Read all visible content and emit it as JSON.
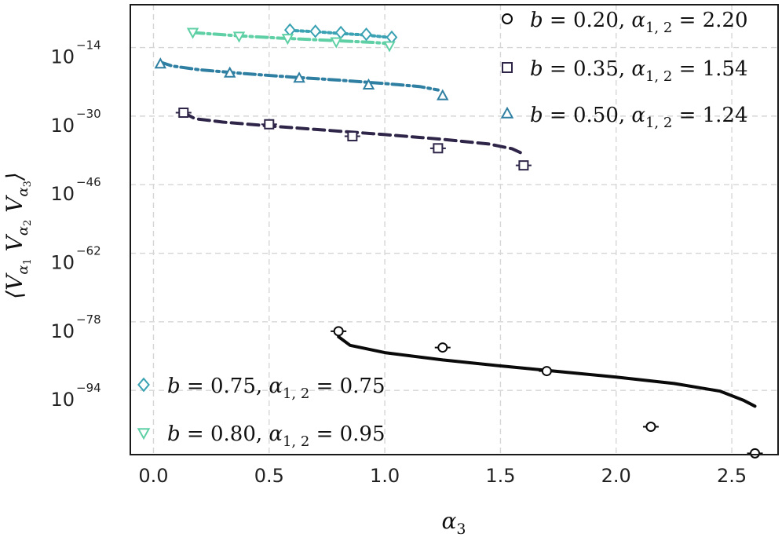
{
  "chart_data": {
    "type": "scatter",
    "title": "",
    "xlabel": "α3",
    "ylabel": "⟨Vα1 Vα2 Vα3⟩",
    "xlim": [
      -0.1,
      2.7
    ],
    "ylim_log10": [
      -109,
      -4
    ],
    "grid": true,
    "x_ticks": [
      "0.0",
      "0.5",
      "1.0",
      "1.5",
      "2.0",
      "2.5"
    ],
    "x_tick_values": [
      0,
      0.5,
      1.0,
      1.5,
      2.0,
      2.5
    ],
    "y_ticks": [
      {
        "base": "10",
        "exp": "−14",
        "value": -14
      },
      {
        "base": "10",
        "exp": "−30",
        "value": -30
      },
      {
        "base": "10",
        "exp": "−46",
        "value": -46
      },
      {
        "base": "10",
        "exp": "−62",
        "value": -62
      },
      {
        "base": "10",
        "exp": "−78",
        "value": -78
      },
      {
        "base": "10",
        "exp": "−94",
        "value": -94
      }
    ],
    "series": [
      {
        "name": "b=0.20, α1,2=2.20",
        "legend": {
          "b": "b",
          "bval": "0.20",
          "alpha": "α",
          "sub": "1, 2",
          "aval": "2.20"
        },
        "marker": "circle",
        "color": "#0a0a0a",
        "line": "solid",
        "points": [
          [
            0.8,
            -80.2
          ],
          [
            1.25,
            -84.0
          ],
          [
            1.7,
            -89.5
          ],
          [
            2.15,
            -102.5
          ],
          [
            2.6,
            -108.7
          ]
        ],
        "curve": [
          [
            0.8,
            -81.5
          ],
          [
            0.85,
            -83.5
          ],
          [
            1.0,
            -85.2
          ],
          [
            1.25,
            -86.9
          ],
          [
            1.5,
            -88.3
          ],
          [
            1.75,
            -89.6
          ],
          [
            2.0,
            -90.9
          ],
          [
            2.25,
            -92.4
          ],
          [
            2.45,
            -94.2
          ],
          [
            2.55,
            -96.3
          ],
          [
            2.6,
            -97.7
          ]
        ]
      },
      {
        "name": "b=0.35, α1,2=1.54",
        "legend": {
          "b": "b",
          "bval": "0.35",
          "alpha": "α",
          "sub": "1, 2",
          "aval": "1.54"
        },
        "marker": "square",
        "color": "#2e2548",
        "line": "dashed",
        "points": [
          [
            0.13,
            -29.2
          ],
          [
            0.5,
            -31.9
          ],
          [
            0.86,
            -34.7
          ],
          [
            1.23,
            -37.5
          ],
          [
            1.6,
            -41.5
          ]
        ],
        "curve": [
          [
            0.13,
            -29.2
          ],
          [
            0.18,
            -30.6
          ],
          [
            0.3,
            -31.4
          ],
          [
            0.5,
            -32.3
          ],
          [
            0.75,
            -33.3
          ],
          [
            1.0,
            -34.3
          ],
          [
            1.25,
            -35.4
          ],
          [
            1.45,
            -36.5
          ],
          [
            1.55,
            -37.6
          ],
          [
            1.59,
            -38.6
          ]
        ]
      },
      {
        "name": "b=0.50, α1,2=1.24",
        "legend": {
          "b": "b",
          "bval": "0.50",
          "alpha": "α",
          "sub": "1, 2",
          "aval": "1.24"
        },
        "marker": "triangle-up",
        "color": "#2f7fa2",
        "line": "dashdot",
        "points": [
          [
            0.03,
            -17.9
          ],
          [
            0.33,
            -20.0
          ],
          [
            0.63,
            -21.2
          ],
          [
            0.93,
            -22.8
          ],
          [
            1.25,
            -25.3
          ]
        ],
        "curve": [
          [
            0.03,
            -17.4
          ],
          [
            0.08,
            -18.3
          ],
          [
            0.2,
            -19.2
          ],
          [
            0.4,
            -20.1
          ],
          [
            0.6,
            -20.9
          ],
          [
            0.8,
            -21.6
          ],
          [
            1.0,
            -22.4
          ],
          [
            1.15,
            -23.1
          ],
          [
            1.23,
            -23.9
          ]
        ]
      },
      {
        "name": "b=0.75, α1,2=0.75",
        "legend": {
          "b": "b",
          "bval": "0.75",
          "alpha": "α",
          "sub": "1, 2",
          "aval": "0.75"
        },
        "marker": "diamond",
        "color": "#3aa2b3",
        "line": "dotted",
        "points": [
          [
            0.59,
            -9.9
          ],
          [
            0.7,
            -10.2
          ],
          [
            0.81,
            -10.5
          ],
          [
            0.92,
            -10.9
          ],
          [
            1.03,
            -11.6
          ]
        ],
        "curve": [
          [
            0.59,
            -10.0
          ],
          [
            0.7,
            -10.3
          ],
          [
            0.81,
            -10.7
          ],
          [
            0.92,
            -11.1
          ],
          [
            1.03,
            -11.7
          ]
        ]
      },
      {
        "name": "b=0.80, α1,2=0.95",
        "legend": {
          "b": "b",
          "bval": "0.80",
          "alpha": "α",
          "sub": "1, 2",
          "aval": "0.95"
        },
        "marker": "triangle-down",
        "color": "#5fd0a5",
        "line": "dashdot",
        "points": [
          [
            0.17,
            -10.4
          ],
          [
            0.37,
            -11.3
          ],
          [
            0.58,
            -11.8
          ],
          [
            0.79,
            -12.6
          ],
          [
            1.02,
            -13.5
          ]
        ],
        "curve": [
          [
            0.17,
            -10.5
          ],
          [
            0.35,
            -11.2
          ],
          [
            0.55,
            -11.8
          ],
          [
            0.75,
            -12.3
          ],
          [
            0.95,
            -12.8
          ],
          [
            1.02,
            -13.1
          ]
        ]
      }
    ],
    "legend_top": [
      "b=0.20, α1,2=2.20",
      "b=0.35, α1,2=1.54",
      "b=0.50, α1,2=1.24"
    ],
    "legend_bottom": [
      "b=0.75, α1,2=0.75",
      "b=0.80, α1,2=0.95"
    ],
    "legend_top_placement": "top-right",
    "legend_bottom_placement": "bottom-left",
    "equals": "="
  }
}
